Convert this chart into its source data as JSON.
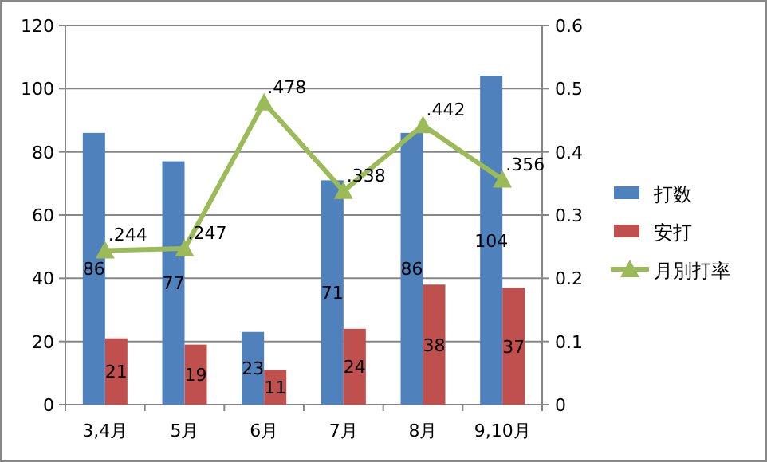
{
  "chart_data": {
    "type": "bar",
    "categories": [
      "3,4月",
      "5月",
      "6月",
      "7月",
      "8月",
      "9,10月"
    ],
    "series": [
      {
        "name": "打数",
        "color": "#4f81bd",
        "values": [
          86,
          77,
          23,
          71,
          86,
          104
        ]
      },
      {
        "name": "安打",
        "color": "#c0504d",
        "values": [
          21,
          19,
          11,
          24,
          38,
          37
        ]
      },
      {
        "name": "月別打率",
        "type": "line",
        "axis": "y2",
        "color": "#9bbb59",
        "marker": "triangle",
        "values": [
          0.244,
          0.247,
          0.478,
          0.338,
          0.442,
          0.356
        ],
        "value_labels": [
          ".244",
          ".247",
          ".478",
          ".338",
          ".442",
          ".356"
        ]
      }
    ],
    "data_labels": true,
    "ylim": [
      0,
      120
    ],
    "yticks": [
      0,
      20,
      40,
      60,
      80,
      100,
      120
    ],
    "y2lim": [
      0,
      0.6
    ],
    "y2ticks": [
      0,
      0.1,
      0.2,
      0.3,
      0.4,
      0.5,
      0.6
    ],
    "grid": "y",
    "legend": "right"
  }
}
